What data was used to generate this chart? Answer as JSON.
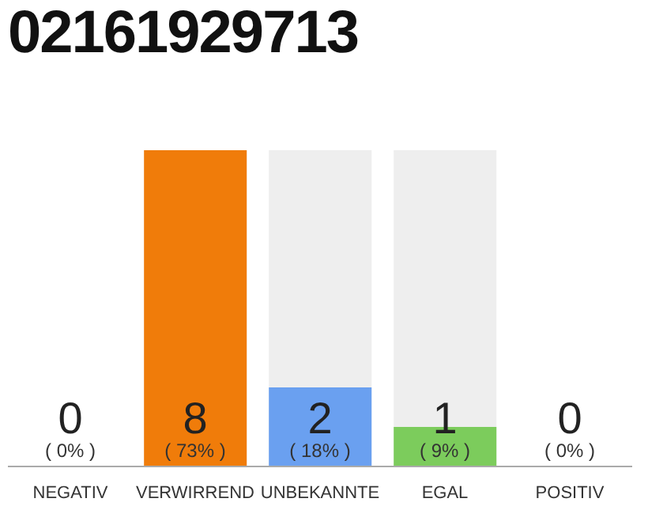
{
  "chart_data": {
    "type": "bar",
    "title": "02161929713",
    "categories": [
      "NEGATIV",
      "VERWIRREND",
      "UNBEKANNTE",
      "EGAL",
      "POSITIV"
    ],
    "values": [
      0,
      8,
      2,
      1,
      0
    ],
    "colors": [
      "#cccccc",
      "#f07c0a",
      "#6aa0f0",
      "#7ccc5c",
      "#cccccc"
    ],
    "data_labels": true,
    "tick_labels": "x",
    "annotations": [
      "( 0% )",
      "( 73% )",
      "( 18% )",
      "( 9% )",
      "( 0% )"
    ]
  }
}
